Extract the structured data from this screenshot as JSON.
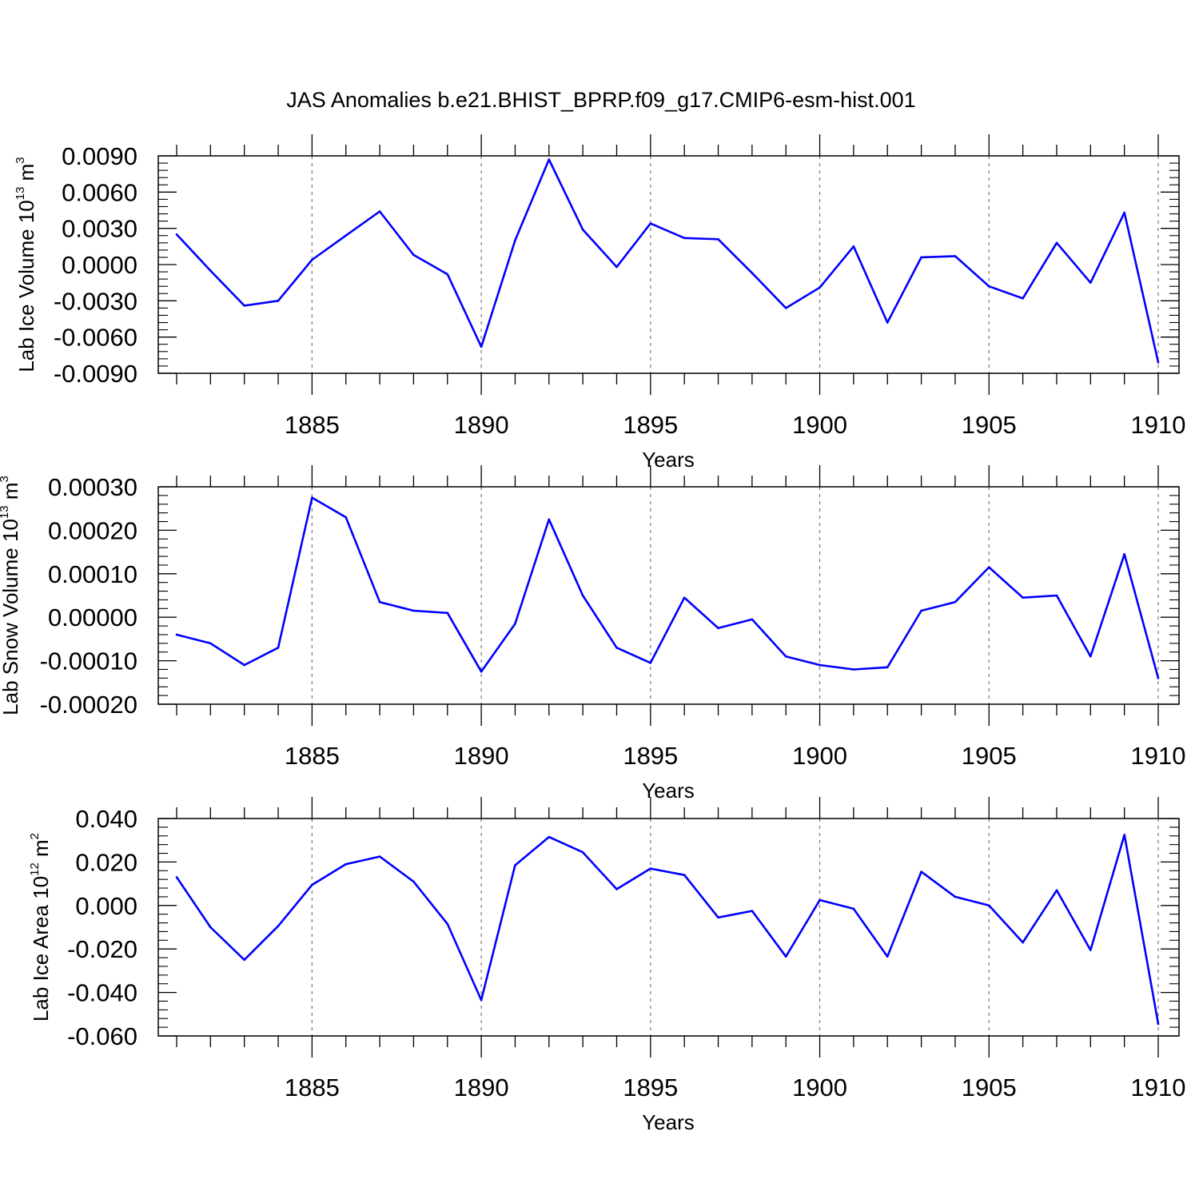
{
  "title": "JAS Anomalies b.e21.BHIST_BPRP.f09_g17.CMIP6-esm-hist.001",
  "line_color": "#0000ff",
  "chart_data": [
    {
      "type": "line",
      "ylabel": {
        "text": "Lab Ice Volume 10",
        "sup": "13",
        "unit": " m",
        "unit_sup": "3"
      },
      "xlabel": "Years",
      "xlim": [
        1881,
        1910
      ],
      "ylim": [
        -0.009,
        0.009
      ],
      "x_ticks": [
        "1885",
        "1890",
        "1895",
        "1900",
        "1905",
        "1910"
      ],
      "y_ticks": [
        "0.0090",
        "0.0060",
        "0.0030",
        "0.0000",
        "-0.0030",
        "-0.0060",
        "-0.0090"
      ],
      "x": [
        1881,
        1882,
        1883,
        1884,
        1885,
        1886,
        1887,
        1888,
        1889,
        1890,
        1891,
        1892,
        1893,
        1894,
        1895,
        1896,
        1897,
        1898,
        1899,
        1900,
        1901,
        1902,
        1903,
        1904,
        1905,
        1906,
        1907,
        1908,
        1909,
        1910
      ],
      "values": [
        0.0025,
        -0.0005,
        -0.0034,
        -0.003,
        0.0004,
        0.0024,
        0.0044,
        0.0008,
        -0.0008,
        -0.0068,
        0.002,
        0.0087,
        0.0029,
        -0.0002,
        0.0034,
        0.0022,
        0.0021,
        -0.0007,
        -0.0036,
        -0.0019,
        0.0015,
        -0.0048,
        0.0006,
        0.0007,
        -0.0018,
        -0.0028,
        0.0018,
        -0.0015,
        0.0043,
        -0.0081
      ]
    },
    {
      "type": "line",
      "ylabel": {
        "text": "Lab Snow Volume 10",
        "sup": "13",
        "unit": " m",
        "unit_sup": "3"
      },
      "xlabel": "Years",
      "xlim": [
        1881,
        1910
      ],
      "ylim": [
        -0.0002,
        0.0003
      ],
      "x_ticks": [
        "1885",
        "1890",
        "1895",
        "1900",
        "1905",
        "1910"
      ],
      "y_ticks": [
        "0.00030",
        "0.00020",
        "0.00010",
        "0.00000",
        "-0.00010",
        "-0.00020"
      ],
      "x": [
        1881,
        1882,
        1883,
        1884,
        1885,
        1886,
        1887,
        1888,
        1889,
        1890,
        1891,
        1892,
        1893,
        1894,
        1895,
        1896,
        1897,
        1898,
        1899,
        1900,
        1901,
        1902,
        1903,
        1904,
        1905,
        1906,
        1907,
        1908,
        1909,
        1910
      ],
      "values": [
        -4e-05,
        -6e-05,
        -0.00011,
        -7e-05,
        0.000275,
        0.00023,
        3.5e-05,
        1.5e-05,
        1e-05,
        -0.000125,
        -1.5e-05,
        0.000225,
        5e-05,
        -7e-05,
        -0.000105,
        4.5e-05,
        -2.5e-05,
        -5e-06,
        -9e-05,
        -0.00011,
        -0.00012,
        -0.000115,
        1.5e-05,
        3.5e-05,
        0.000115,
        4.5e-05,
        5e-05,
        -9e-05,
        0.000145,
        -0.00014
      ]
    },
    {
      "type": "line",
      "ylabel": {
        "text": "Lab Ice Area 10",
        "sup": "12",
        "unit": " m",
        "unit_sup": "2"
      },
      "xlabel": "Years",
      "xlim": [
        1881,
        1910
      ],
      "ylim": [
        -0.06,
        0.04
      ],
      "x_ticks": [
        "1885",
        "1890",
        "1895",
        "1900",
        "1905",
        "1910"
      ],
      "y_ticks": [
        "0.040",
        "0.020",
        "0.000",
        "-0.020",
        "-0.040",
        "-0.060"
      ],
      "x": [
        1881,
        1882,
        1883,
        1884,
        1885,
        1886,
        1887,
        1888,
        1889,
        1890,
        1891,
        1892,
        1893,
        1894,
        1895,
        1896,
        1897,
        1898,
        1899,
        1900,
        1901,
        1902,
        1903,
        1904,
        1905,
        1906,
        1907,
        1908,
        1909,
        1910
      ],
      "values": [
        0.013,
        -0.01,
        -0.025,
        -0.0095,
        0.0095,
        0.019,
        0.0225,
        0.011,
        -0.0085,
        -0.0435,
        0.0185,
        0.0315,
        0.0245,
        0.0075,
        0.017,
        0.014,
        -0.0055,
        -0.0025,
        -0.0235,
        0.0025,
        -0.0015,
        -0.0235,
        0.0155,
        0.004,
        0.0,
        -0.017,
        0.007,
        -0.0205,
        0.0325,
        -0.0545
      ]
    }
  ]
}
